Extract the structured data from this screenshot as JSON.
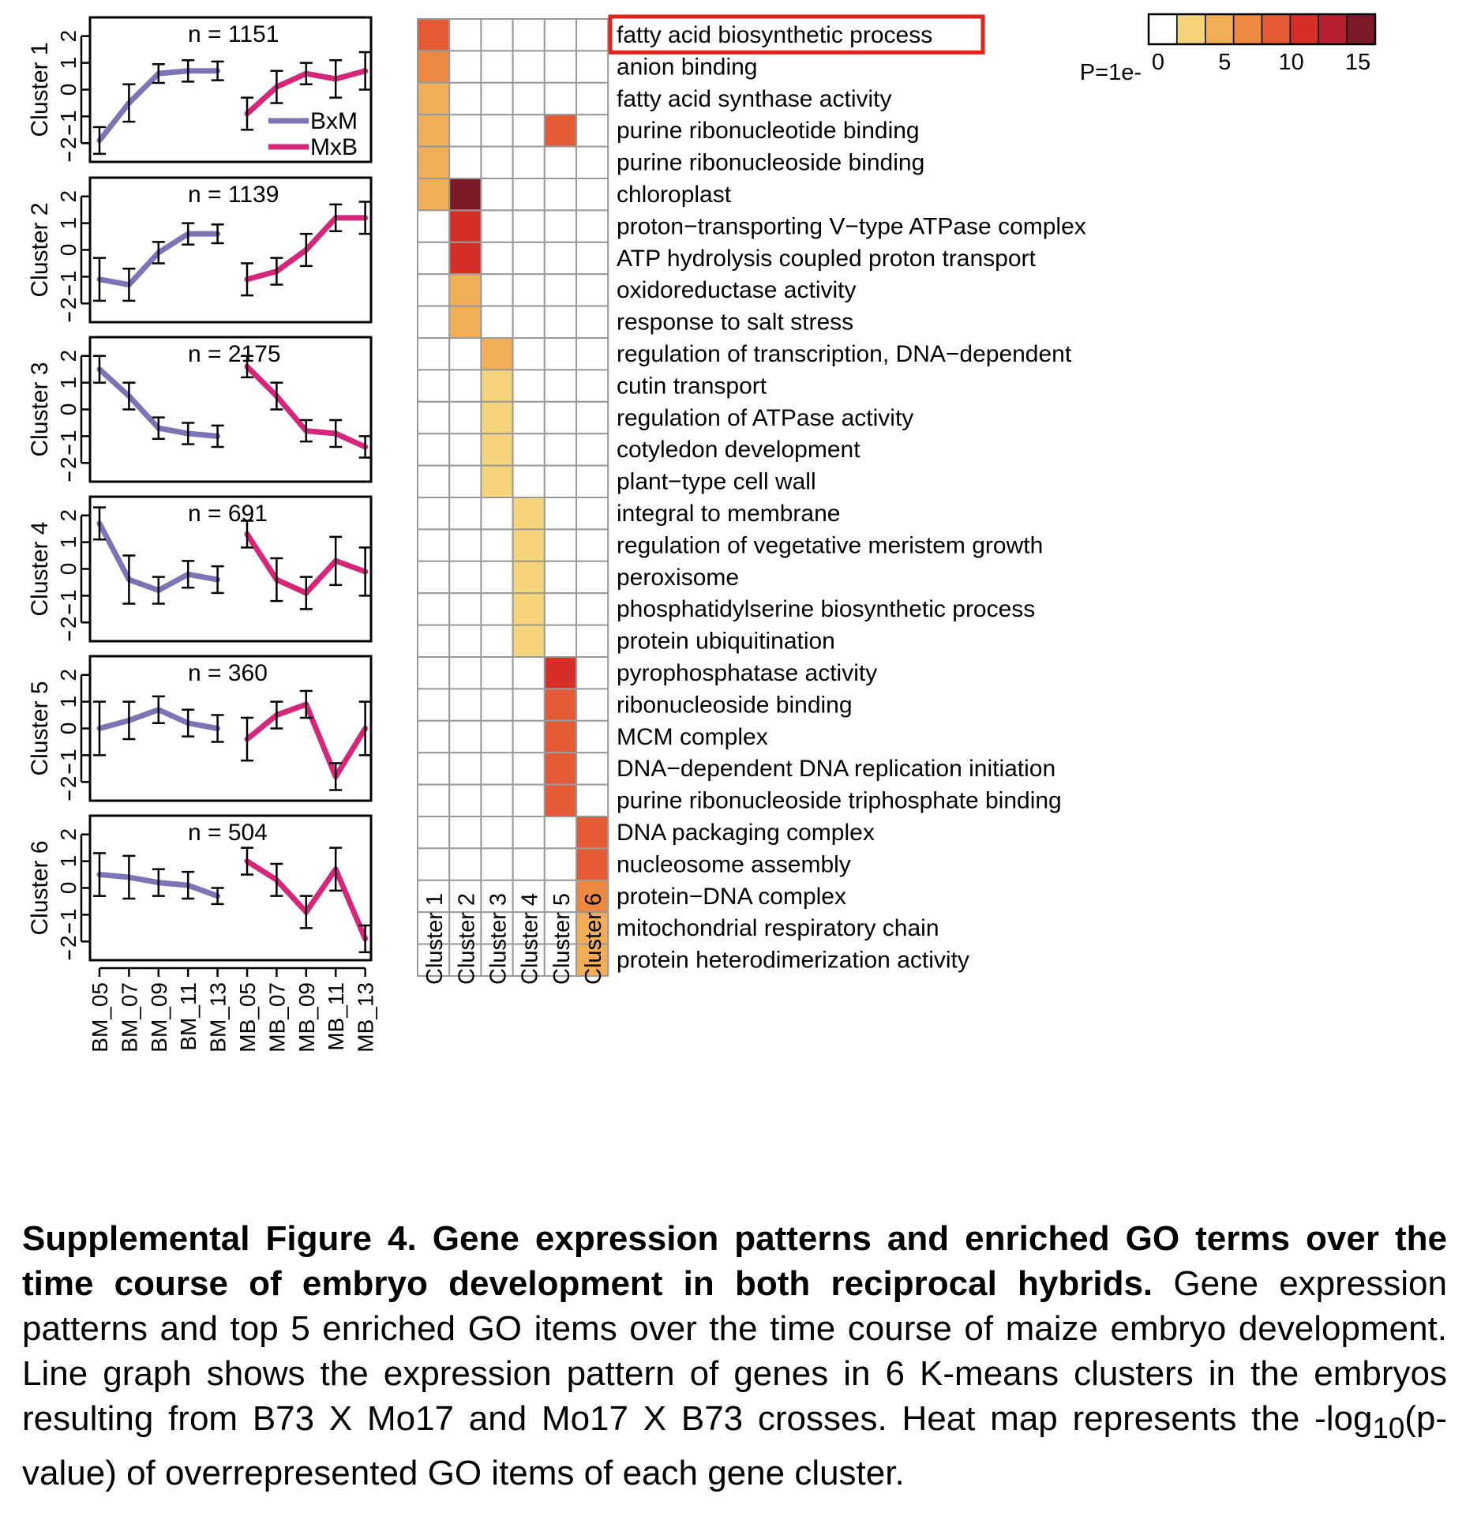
{
  "chart_data": [
    {
      "type": "line",
      "panel_label": "line-graphs",
      "x": [
        "BM_05",
        "BM_07",
        "BM_09",
        "BM_11",
        "BM_13",
        "MB_05",
        "MB_07",
        "MB_09",
        "MB_11",
        "MB_13"
      ],
      "ytick_labels": [
        "2",
        "1",
        "0",
        "1",
        "2"
      ],
      "ylim": [
        -2.7,
        2.7
      ],
      "legend": {
        "placement": "inside-cluster-1-lower-right",
        "entries": [
          "BxM",
          "MxB"
        ]
      },
      "series_colors": {
        "BxM": "#7b74b6",
        "MxB": "#d6267a"
      },
      "panels": [
        {
          "label": "Cluster 1",
          "n_label": "n = 1151",
          "series": [
            {
              "name": "BxM",
              "x": [
                "BM_05",
                "BM_07",
                "BM_09",
                "BM_11",
                "BM_13"
              ],
              "values": [
                -1.9,
                -0.5,
                0.6,
                0.7,
                0.7
              ],
              "err": [
                0.5,
                0.7,
                0.35,
                0.4,
                0.35
              ]
            },
            {
              "name": "MxB",
              "x": [
                "MB_05",
                "MB_07",
                "MB_09",
                "MB_11",
                "MB_13"
              ],
              "values": [
                -0.9,
                0.1,
                0.6,
                0.4,
                0.7
              ],
              "err": [
                0.6,
                0.6,
                0.4,
                0.7,
                0.7
              ]
            }
          ]
        },
        {
          "label": "Cluster 2",
          "n_label": "n = 1139",
          "series": [
            {
              "name": "BxM",
              "x": [
                "BM_05",
                "BM_07",
                "BM_09",
                "BM_11",
                "BM_13"
              ],
              "values": [
                -1.1,
                -1.3,
                -0.1,
                0.6,
                0.6
              ],
              "err": [
                0.8,
                0.6,
                0.4,
                0.4,
                0.35
              ]
            },
            {
              "name": "MxB",
              "x": [
                "MB_05",
                "MB_07",
                "MB_09",
                "MB_11",
                "MB_13"
              ],
              "values": [
                -1.1,
                -0.8,
                0.0,
                1.2,
                1.2
              ],
              "err": [
                0.6,
                0.5,
                0.6,
                0.5,
                0.6
              ]
            }
          ]
        },
        {
          "label": "Cluster 3",
          "n_label": "n = 2175",
          "series": [
            {
              "name": "BxM",
              "x": [
                "BM_05",
                "BM_07",
                "BM_09",
                "BM_11",
                "BM_13"
              ],
              "values": [
                1.5,
                0.5,
                -0.7,
                -0.9,
                -1.0
              ],
              "err": [
                0.5,
                0.5,
                0.4,
                0.4,
                0.4
              ]
            },
            {
              "name": "MxB",
              "x": [
                "MB_05",
                "MB_07",
                "MB_09",
                "MB_11",
                "MB_13"
              ],
              "values": [
                1.6,
                0.5,
                -0.8,
                -0.9,
                -1.4
              ],
              "err": [
                0.4,
                0.5,
                0.4,
                0.5,
                0.4
              ]
            }
          ]
        },
        {
          "label": "Cluster 4",
          "n_label": "n = 691",
          "series": [
            {
              "name": "BxM",
              "x": [
                "BM_05",
                "BM_07",
                "BM_09",
                "BM_11",
                "BM_13"
              ],
              "values": [
                1.7,
                -0.4,
                -0.8,
                -0.2,
                -0.4
              ],
              "err": [
                0.6,
                0.9,
                0.5,
                0.5,
                0.5
              ]
            },
            {
              "name": "MxB",
              "x": [
                "MB_05",
                "MB_07",
                "MB_09",
                "MB_11",
                "MB_13"
              ],
              "values": [
                1.3,
                -0.4,
                -0.9,
                0.3,
                -0.1
              ],
              "err": [
                0.5,
                0.8,
                0.6,
                0.9,
                0.9
              ]
            }
          ]
        },
        {
          "label": "Cluster 5",
          "n_label": "n = 360",
          "series": [
            {
              "name": "BxM",
              "x": [
                "BM_05",
                "BM_07",
                "BM_09",
                "BM_11",
                "BM_13"
              ],
              "values": [
                0.0,
                0.3,
                0.7,
                0.2,
                0.0
              ],
              "err": [
                1.0,
                0.7,
                0.5,
                0.5,
                0.5
              ]
            },
            {
              "name": "MxB",
              "x": [
                "MB_05",
                "MB_07",
                "MB_09",
                "MB_11",
                "MB_13"
              ],
              "values": [
                -0.4,
                0.5,
                0.9,
                -1.8,
                0.0
              ],
              "err": [
                0.8,
                0.5,
                0.5,
                0.5,
                1.0
              ]
            }
          ]
        },
        {
          "label": "Cluster 6",
          "n_label": "n = 504",
          "series": [
            {
              "name": "BxM",
              "x": [
                "BM_05",
                "BM_07",
                "BM_09",
                "BM_11",
                "BM_13"
              ],
              "values": [
                0.5,
                0.4,
                0.2,
                0.1,
                -0.3
              ],
              "err": [
                0.8,
                0.8,
                0.5,
                0.5,
                0.3
              ]
            },
            {
              "name": "MxB",
              "x": [
                "MB_05",
                "MB_07",
                "MB_09",
                "MB_11",
                "MB_13"
              ],
              "values": [
                1.0,
                0.3,
                -0.9,
                0.7,
                -1.9
              ],
              "err": [
                0.5,
                0.6,
                0.6,
                0.8,
                0.5
              ]
            }
          ]
        }
      ]
    },
    {
      "type": "heatmap",
      "panel_label": "go-heatmap",
      "columns": [
        "Cluster 1",
        "Cluster 2",
        "Cluster 3",
        "Cluster 4",
        "Cluster 5",
        "Cluster 6"
      ],
      "rows": [
        "fatty acid biosynthetic process",
        "anion binding",
        "fatty acid synthase activity",
        "purine ribonucleotide binding",
        "purine ribonucleoside binding",
        "chloroplast",
        "proton−transporting V−type ATPase complex",
        "ATP hydrolysis coupled proton transport",
        "oxidoreductase activity",
        "response to salt stress",
        "regulation of transcription, DNA−dependent",
        "cutin transport",
        "regulation of ATPase activity",
        "cotyledon development",
        "plant−type cell wall",
        "integral to membrane",
        "regulation of vegetative meristem growth",
        "peroxisome",
        "phosphatidylserine biosynthetic process",
        "protein ubiquitination",
        "pyrophosphatase activity",
        "ribonucleoside binding",
        "MCM complex",
        "DNA−dependent DNA replication initiation",
        "purine ribonucleoside triphosphate binding",
        "DNA packaging complex",
        "nucleosome assembly",
        "protein−DNA complex",
        "mitochondrial respiratory chain",
        "protein heterodimerization activity"
      ],
      "values": [
        [
          9,
          0,
          0,
          0,
          0,
          0
        ],
        [
          7,
          0,
          0,
          0,
          0,
          0
        ],
        [
          5,
          0,
          0,
          0,
          0,
          0
        ],
        [
          5,
          0,
          0,
          0,
          9,
          0
        ],
        [
          5,
          0,
          0,
          0,
          0,
          0
        ],
        [
          5,
          16,
          0,
          0,
          0,
          0
        ],
        [
          0,
          13,
          0,
          0,
          0,
          0
        ],
        [
          0,
          12,
          0,
          0,
          0,
          0
        ],
        [
          0,
          5,
          0,
          0,
          0,
          0
        ],
        [
          0,
          5,
          0,
          0,
          0,
          0
        ],
        [
          0,
          0,
          5,
          0,
          0,
          0
        ],
        [
          0,
          0,
          3,
          0,
          0,
          0
        ],
        [
          0,
          0,
          3,
          0,
          0,
          0
        ],
        [
          0,
          0,
          3,
          0,
          0,
          0
        ],
        [
          0,
          0,
          3,
          0,
          0,
          0
        ],
        [
          0,
          0,
          0,
          3,
          0,
          0
        ],
        [
          0,
          0,
          0,
          3,
          0,
          0
        ],
        [
          0,
          0,
          0,
          3,
          0,
          0
        ],
        [
          0,
          0,
          0,
          3,
          0,
          0
        ],
        [
          0,
          0,
          0,
          3,
          0,
          0
        ],
        [
          0,
          0,
          0,
          0,
          12,
          0
        ],
        [
          0,
          0,
          0,
          0,
          9,
          0
        ],
        [
          0,
          0,
          0,
          0,
          9,
          0
        ],
        [
          0,
          0,
          0,
          0,
          9,
          0
        ],
        [
          0,
          0,
          0,
          0,
          9,
          0
        ],
        [
          0,
          0,
          0,
          0,
          0,
          9
        ],
        [
          0,
          0,
          0,
          0,
          0,
          9
        ],
        [
          0,
          0,
          0,
          0,
          0,
          7
        ],
        [
          0,
          0,
          0,
          0,
          0,
          5
        ],
        [
          0,
          0,
          0,
          0,
          0,
          5
        ]
      ],
      "highlighted_row": "fatty acid biosynthetic process",
      "highlight_color": "#e0231b",
      "colorbar": {
        "label": "P=1e-",
        "ticks": [
          0,
          5,
          10,
          15
        ],
        "range": [
          0,
          17
        ],
        "colors": [
          "#ffffff",
          "#f6d47b",
          "#f1ae56",
          "#ec8840",
          "#e45a32",
          "#d72e26",
          "#b51f2e",
          "#7d1a28"
        ]
      }
    }
  ],
  "caption": {
    "title": "Supplemental Figure 4. Gene expression patterns and enriched GO terms over the time course of embryo development in both reciprocal hybrids.",
    "body_before_sub": " Gene expression patterns and top 5 enriched GO items over the time course of maize embryo development. Line graph shows the expression pattern of genes in 6 K-means clusters in the embryos resulting from B73 X Mo17 and Mo17 X B73 crosses. Heat map represents the  -log",
    "sub": "10",
    "body_after_sub": "(p-value) of overrepresented GO items of each gene cluster."
  }
}
